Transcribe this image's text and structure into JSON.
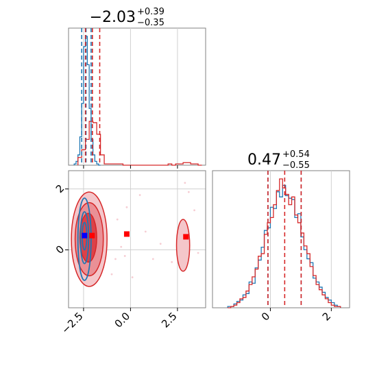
{
  "chart_data": [
    {
      "type": "histogram",
      "panel": "param-1-marginal",
      "title": {
        "value": "−2.03",
        "plus": "+0.39",
        "minus": "−0.35"
      },
      "xlim": [
        -3.3,
        4.0
      ],
      "grid": true,
      "series": [
        {
          "name": "",
          "color": "#1f77b4",
          "bin_edges": [
            -3.0,
            -2.9,
            -2.8,
            -2.7,
            -2.6,
            -2.5,
            -2.4,
            -2.3,
            -2.2,
            -2.1,
            -2.0,
            -1.9,
            -1.8,
            -1.7,
            -1.6
          ],
          "counts": [
            1,
            3,
            8,
            22,
            48,
            92,
            100,
            78,
            44,
            20,
            8,
            3,
            1,
            0
          ]
        },
        {
          "name": "",
          "color": "#d62728",
          "bin_edges": [
            -2.8,
            -2.6,
            -2.4,
            -2.2,
            -2.0,
            -1.8,
            -1.6,
            -1.4,
            -1.2,
            -1.0,
            -0.8,
            -0.6,
            -0.4,
            2.0,
            2.2,
            2.4,
            2.6,
            2.8,
            3.0,
            3.2,
            3.4,
            3.6,
            3.8
          ],
          "counts": [
            6,
            12,
            20,
            34,
            33,
            24,
            8,
            1,
            1,
            1,
            1,
            1,
            0,
            1,
            0,
            1,
            1,
            2,
            2,
            1,
            1,
            0
          ]
        }
      ],
      "quantile_lines": [
        {
          "color": "#1f77b4",
          "values": [
            -2.6,
            -2.37,
            -2.1
          ]
        },
        {
          "color": "#d62728",
          "values": [
            -2.4,
            -2.03,
            -1.64
          ]
        }
      ]
    },
    {
      "type": "histogram",
      "panel": "param-2-marginal",
      "title": {
        "value": "0.47",
        "plus": "+0.54",
        "minus": "−0.55"
      },
      "xlim": [
        -1.9,
        2.6
      ],
      "xticks": [
        "0",
        "2"
      ],
      "grid": true,
      "series": [
        {
          "name": "",
          "color": "#1f77b4",
          "bin_edges": [
            -1.4,
            -1.3,
            -1.2,
            -1.1,
            -1.0,
            -0.9,
            -0.8,
            -0.7,
            -0.6,
            -0.5,
            -0.4,
            -0.3,
            -0.2,
            -0.1,
            0.0,
            0.1,
            0.2,
            0.3,
            0.4,
            0.5,
            0.6,
            0.7,
            0.8,
            0.9,
            1.0,
            1.1,
            1.2,
            1.3,
            1.4,
            1.5,
            1.6,
            1.7,
            1.8,
            1.9,
            2.0,
            2.1,
            2.2,
            2.3
          ],
          "counts": [
            1,
            1,
            3,
            5,
            6,
            10,
            11,
            20,
            19,
            31,
            37,
            47,
            60,
            62,
            78,
            77,
            90,
            86,
            95,
            87,
            85,
            84,
            70,
            73,
            55,
            45,
            38,
            35,
            23,
            20,
            16,
            12,
            8,
            6,
            4,
            2,
            1
          ]
        },
        {
          "name": "",
          "color": "#d62728",
          "bin_edges": [
            -1.4,
            -1.3,
            -1.2,
            -1.1,
            -1.0,
            -0.9,
            -0.8,
            -0.7,
            -0.6,
            -0.5,
            -0.4,
            -0.3,
            -0.2,
            -0.1,
            0.0,
            0.1,
            0.2,
            0.3,
            0.4,
            0.5,
            0.6,
            0.7,
            0.8,
            0.9,
            1.0,
            1.1,
            1.2,
            1.3,
            1.4,
            1.5,
            1.6,
            1.7,
            1.8,
            1.9,
            2.0,
            2.1,
            2.2,
            2.3
          ],
          "counts": [
            0,
            1,
            2,
            4,
            7,
            8,
            13,
            18,
            24,
            30,
            40,
            42,
            57,
            66,
            70,
            80,
            91,
            100,
            93,
            88,
            80,
            86,
            72,
            66,
            58,
            48,
            42,
            32,
            25,
            18,
            14,
            10,
            7,
            4,
            2,
            1,
            1
          ]
        }
      ],
      "quantile_lines": [
        {
          "color": "#1f77b4",
          "values": [
            -0.08,
            1.01
          ]
        },
        {
          "color": "#d62728",
          "values": [
            -0.08,
            0.47,
            1.01
          ]
        }
      ]
    },
    {
      "type": "contour",
      "panel": "joint",
      "xlim": [
        -3.3,
        4.0
      ],
      "ylim": [
        -1.9,
        2.6
      ],
      "xticks": [
        "−2.5",
        "0.0",
        "2.5"
      ],
      "yticks": [
        "2",
        "0"
      ],
      "grid": true,
      "series": [
        {
          "name": "",
          "color": "#d62728",
          "fill": true,
          "levels": [
            {
              "level": 1,
              "rings": [
                {
                  "cx": -2.2,
                  "cy": 0.35,
                  "rx": 0.95,
                  "ry": 1.55
                },
                {
                  "cx": 2.8,
                  "cy": 0.15,
                  "rx": 0.35,
                  "ry": 0.85
                }
              ]
            },
            {
              "level": 2,
              "rings": [
                {
                  "cx": -2.2,
                  "cy": 0.35,
                  "rx": 0.75,
                  "ry": 1.2
                }
              ]
            },
            {
              "level": 3,
              "rings": [
                {
                  "cx": -2.25,
                  "cy": 0.4,
                  "rx": 0.45,
                  "ry": 0.8
                }
              ]
            }
          ],
          "markers": [
            {
              "x": -2.05,
              "y": 0.47
            },
            {
              "x": -0.2,
              "y": 0.52
            },
            {
              "x": 2.95,
              "y": 0.43
            }
          ]
        },
        {
          "name": "",
          "color": "#1f77b4",
          "fill": false,
          "levels": [
            {
              "level": 1,
              "rings": [
                {
                  "cx": -2.45,
                  "cy": 0.35,
                  "rx": 0.35,
                  "ry": 1.35
                }
              ]
            },
            {
              "level": 2,
              "rings": [
                {
                  "cx": -2.45,
                  "cy": 0.4,
                  "rx": 0.22,
                  "ry": 0.85
                }
              ]
            },
            {
              "level": 3,
              "rings": [
                {
                  "cx": -2.45,
                  "cy": 0.45,
                  "rx": 0.12,
                  "ry": 0.45
                }
              ]
            }
          ],
          "markers": [
            {
              "x": -2.45,
              "y": 0.47
            }
          ]
        }
      ],
      "scatter_points": [
        {
          "x": -0.8,
          "y": -0.3
        },
        {
          "x": -0.3,
          "y": -0.2
        },
        {
          "x": 0.5,
          "y": 1.8
        },
        {
          "x": 2.9,
          "y": 2.2
        },
        {
          "x": 3.4,
          "y": 1.3
        },
        {
          "x": -0.5,
          "y": 0.1
        },
        {
          "x": 0.8,
          "y": 0.6
        },
        {
          "x": 1.6,
          "y": 0.2
        },
        {
          "x": -1.0,
          "y": -0.8
        },
        {
          "x": -0.2,
          "y": 1.4
        },
        {
          "x": 2.2,
          "y": -0.4
        },
        {
          "x": 3.6,
          "y": -0.1
        },
        {
          "x": 3.1,
          "y": 1.9
        },
        {
          "x": 0.1,
          "y": -0.9
        },
        {
          "x": -0.7,
          "y": 1.0
        },
        {
          "x": 1.2,
          "y": -0.3
        }
      ]
    }
  ]
}
